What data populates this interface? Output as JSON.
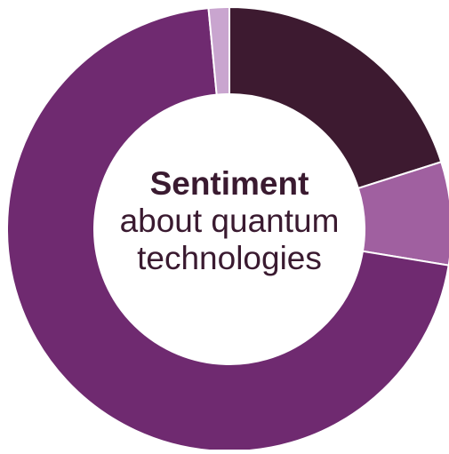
{
  "chart_data": {
    "type": "pie",
    "title": "Sentiment",
    "subtitle": "about quantum technologies",
    "slices": [
      {
        "value": 20.1,
        "color": "#3d1a30"
      },
      {
        "value": 7.5,
        "color": "#a060a0"
      },
      {
        "value": 70.9,
        "color": "#6f2a70"
      },
      {
        "value": 1.5,
        "color": "#c9a5cf"
      }
    ],
    "start_angle_deg": 0,
    "direction": "clockwise",
    "style": "donut"
  }
}
